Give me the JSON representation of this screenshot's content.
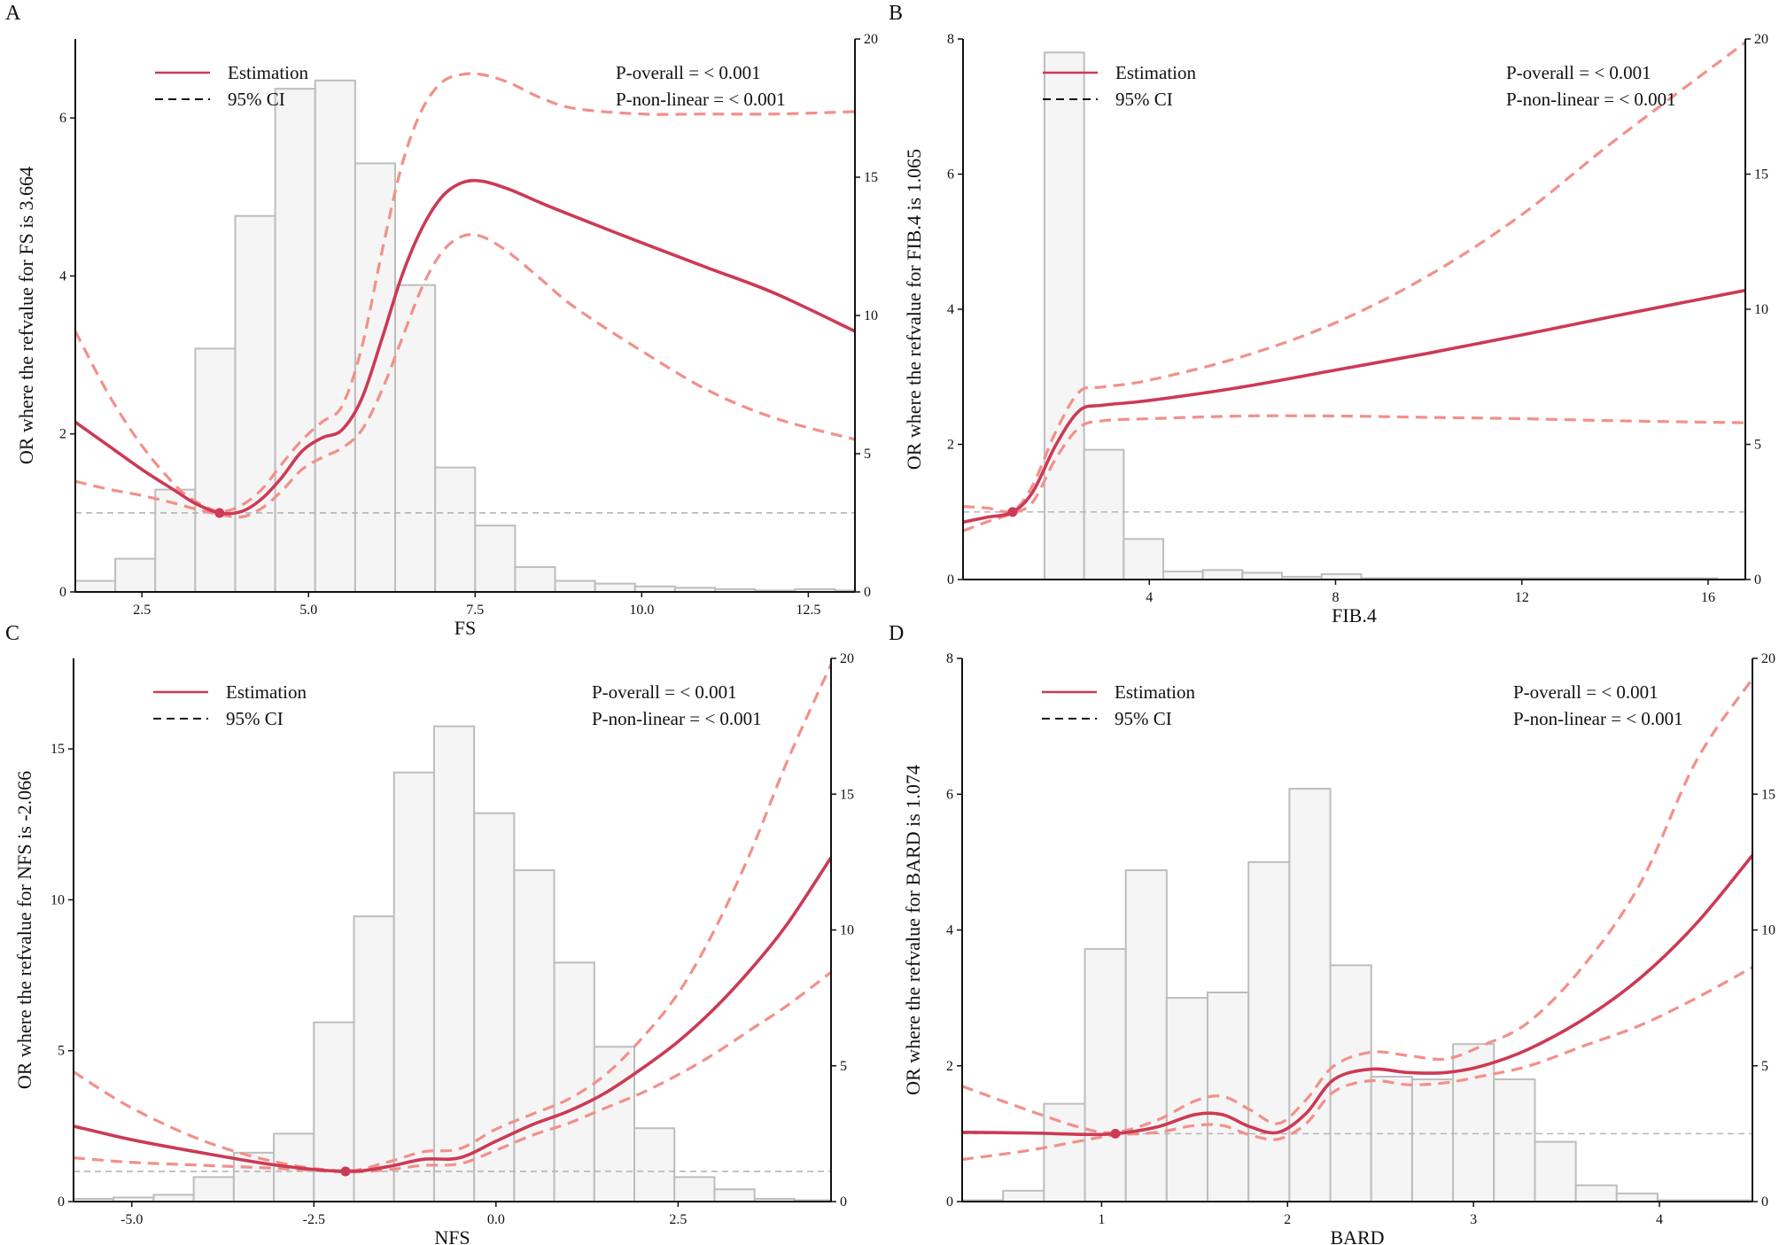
{
  "colors": {
    "estimation": "#cc3a55",
    "ci": "#f2908a",
    "bar_fill": "#f6f5f5",
    "bar_stroke": "#bdbdbd",
    "ref_line": "#b5b5b5",
    "axis": "#111111"
  },
  "chart_data": [
    {
      "panel": "A",
      "type": "line",
      "xlabel": "FS",
      "ylabel": "OR where the refvalue for FS is 3.664",
      "xlim": [
        1.5,
        13.2
      ],
      "ylim": [
        0,
        7
      ],
      "y2lim": [
        0,
        20
      ],
      "xticks": [
        2.5,
        5.0,
        7.5,
        10.0,
        12.5
      ],
      "xtick_labels": [
        "2.5",
        "5.0",
        "7.5",
        "10.0",
        "12.5"
      ],
      "yticks": [
        0,
        2,
        4,
        6
      ],
      "y2ticks": [
        0,
        5,
        10,
        15,
        20
      ],
      "ref_value": 1,
      "ref_point": [
        3.664,
        1
      ],
      "legend": {
        "estimation": "Estimation",
        "ci": "95% CI"
      },
      "p_overall": "P-overall = < 0.001",
      "p_nonlinear": "P-non-linear = < 0.001",
      "histogram": {
        "bin_edges": [
          1.5,
          2.1,
          2.7,
          3.3,
          3.9,
          4.5,
          5.1,
          5.7,
          6.3,
          6.9,
          7.5,
          8.1,
          8.7,
          9.3,
          9.9,
          10.5,
          11.1,
          11.7,
          12.3,
          12.9,
          13.2
        ],
        "counts": [
          0.4,
          1.2,
          3.7,
          8.8,
          13.6,
          18.2,
          18.5,
          15.5,
          11.1,
          4.5,
          2.4,
          0.9,
          0.4,
          0.3,
          0.2,
          0.15,
          0.1,
          0.05,
          0.1,
          0.05
        ]
      },
      "estimate": {
        "x": [
          1.5,
          2.0,
          2.5,
          3.0,
          3.3,
          3.664,
          4.0,
          4.3,
          4.6,
          4.9,
          5.2,
          5.5,
          5.8,
          6.1,
          6.4,
          6.7,
          7.0,
          7.3,
          7.6,
          8.0,
          8.5,
          9.0,
          10.0,
          11.0,
          12.0,
          13.2
        ],
        "y": [
          2.15,
          1.85,
          1.55,
          1.28,
          1.12,
          1.0,
          1.02,
          1.18,
          1.45,
          1.78,
          1.95,
          2.05,
          2.45,
          3.2,
          4.0,
          4.6,
          5.0,
          5.18,
          5.2,
          5.1,
          4.92,
          4.75,
          4.42,
          4.1,
          3.78,
          3.3
        ]
      },
      "ci_upper": {
        "x": [
          1.5,
          2.0,
          2.5,
          3.0,
          3.3,
          3.664,
          4.0,
          4.3,
          4.6,
          4.9,
          5.2,
          5.5,
          5.8,
          6.1,
          6.4,
          6.7,
          7.0,
          7.3,
          7.6,
          8.0,
          8.5,
          9.0,
          10.0,
          11.0,
          12.0,
          13.2
        ],
        "y": [
          3.3,
          2.5,
          1.85,
          1.35,
          1.15,
          1.02,
          1.1,
          1.3,
          1.62,
          1.92,
          2.15,
          2.35,
          3.1,
          4.3,
          5.4,
          6.1,
          6.45,
          6.55,
          6.55,
          6.45,
          6.25,
          6.12,
          6.05,
          6.05,
          6.05,
          6.08
        ]
      },
      "ci_lower": {
        "x": [
          1.5,
          2.0,
          2.5,
          3.0,
          3.3,
          3.664,
          4.0,
          4.3,
          4.6,
          4.9,
          5.2,
          5.5,
          5.8,
          6.1,
          6.4,
          6.7,
          7.0,
          7.3,
          7.6,
          8.0,
          8.5,
          9.0,
          10.0,
          11.0,
          12.0,
          13.2
        ],
        "y": [
          1.4,
          1.3,
          1.22,
          1.12,
          1.05,
          0.98,
          0.95,
          1.06,
          1.28,
          1.55,
          1.7,
          1.82,
          2.05,
          2.55,
          3.2,
          3.85,
          4.3,
          4.5,
          4.5,
          4.3,
          3.95,
          3.6,
          3.05,
          2.55,
          2.2,
          1.93
        ]
      }
    },
    {
      "panel": "B",
      "type": "line",
      "xlabel": "FIB.4",
      "ylabel": "OR where the refvalue for FIB.4 is 1.065",
      "xlim": [
        0,
        16.8
      ],
      "ylim": [
        0,
        8
      ],
      "y2lim": [
        0,
        20
      ],
      "xticks": [
        4,
        8,
        12,
        16
      ],
      "xtick_labels": [
        "4",
        "8",
        "12",
        "16"
      ],
      "yticks": [
        0,
        2,
        4,
        6,
        8
      ],
      "y2ticks": [
        0,
        5,
        10,
        15,
        20
      ],
      "ref_value": 1,
      "ref_point": [
        1.065,
        1
      ],
      "legend": {
        "estimation": "Estimation",
        "ci": "95% CI"
      },
      "p_overall": "P-overall = < 0.001",
      "p_nonlinear": "P-non-linear = < 0.001",
      "histogram": {
        "bin_edges": [
          1.75,
          2.6,
          3.45,
          4.3,
          5.15,
          6.0,
          6.85,
          7.7,
          8.55,
          9.4,
          10.25,
          11.1,
          11.95,
          12.8,
          13.65,
          14.5,
          15.35,
          16.2
        ],
        "counts": [
          19.5,
          4.8,
          1.5,
          0.3,
          0.35,
          0.25,
          0.1,
          0.2,
          0.05,
          0.05,
          0.05,
          0.05,
          0.05,
          0.05,
          0.05,
          0.05,
          0.05
        ]
      },
      "estimate": {
        "x": [
          0,
          0.5,
          1.065,
          1.5,
          2.0,
          2.5,
          3.0,
          4.0,
          6.0,
          8.0,
          10.0,
          12.0,
          14.0,
          16.8
        ],
        "y": [
          0.85,
          0.92,
          1.0,
          1.3,
          2.0,
          2.5,
          2.58,
          2.65,
          2.85,
          3.1,
          3.35,
          3.62,
          3.9,
          4.28
        ]
      },
      "ci_upper": {
        "x": [
          0,
          0.5,
          1.065,
          1.5,
          2.0,
          2.5,
          3.0,
          4.0,
          6.0,
          8.0,
          10.0,
          12.0,
          14.0,
          16.8
        ],
        "y": [
          1.08,
          1.06,
          1.02,
          1.4,
          2.2,
          2.78,
          2.85,
          2.95,
          3.3,
          3.8,
          4.5,
          5.4,
          6.5,
          7.95
        ]
      },
      "ci_lower": {
        "x": [
          0,
          0.5,
          1.065,
          1.5,
          2.0,
          2.5,
          3.0,
          4.0,
          6.0,
          8.0,
          10.0,
          12.0,
          14.0,
          16.8
        ],
        "y": [
          0.72,
          0.85,
          0.98,
          1.15,
          1.8,
          2.25,
          2.35,
          2.38,
          2.42,
          2.42,
          2.4,
          2.38,
          2.35,
          2.32
        ]
      }
    },
    {
      "panel": "C",
      "type": "line",
      "xlabel": "NFS",
      "ylabel": "OR where the refvalue for NFS is -2.066",
      "xlim": [
        -5.8,
        4.6
      ],
      "ylim": [
        0,
        18
      ],
      "y2lim": [
        0,
        20
      ],
      "xticks": [
        -5.0,
        -2.5,
        0.0,
        2.5
      ],
      "xtick_labels": [
        "-5.0",
        "-2.5",
        "0.0",
        "2.5"
      ],
      "yticks": [
        0,
        5,
        10,
        15
      ],
      "y2ticks": [
        0,
        5,
        10,
        15,
        20
      ],
      "ref_value": 1,
      "ref_point": [
        -2.066,
        1
      ],
      "legend": {
        "estimation": "Estimation",
        "ci": "95% CI"
      },
      "p_overall": "P-overall = < 0.001",
      "p_nonlinear": "P-non-linear = < 0.001",
      "histogram": {
        "bin_edges": [
          -5.8,
          -5.25,
          -4.7,
          -4.15,
          -3.6,
          -3.05,
          -2.5,
          -1.95,
          -1.4,
          -0.85,
          -0.3,
          0.25,
          0.8,
          1.35,
          1.9,
          2.45,
          3.0,
          3.55,
          4.1,
          4.6
        ],
        "counts": [
          0.1,
          0.15,
          0.25,
          0.9,
          1.8,
          2.5,
          6.6,
          10.5,
          15.8,
          17.5,
          14.3,
          12.2,
          8.8,
          5.7,
          2.7,
          0.9,
          0.45,
          0.1,
          0.05
        ]
      },
      "estimate": {
        "x": [
          -5.8,
          -5.0,
          -4.0,
          -3.0,
          -2.066,
          -1.5,
          -1.0,
          -0.5,
          0.0,
          0.5,
          1.0,
          1.5,
          2.0,
          2.5,
          3.0,
          3.5,
          4.0,
          4.6
        ],
        "y": [
          2.5,
          2.05,
          1.6,
          1.2,
          1.0,
          1.15,
          1.4,
          1.45,
          2.0,
          2.55,
          3.0,
          3.6,
          4.4,
          5.3,
          6.4,
          7.7,
          9.2,
          11.4
        ]
      },
      "ci_upper": {
        "x": [
          -5.8,
          -5.0,
          -4.0,
          -3.0,
          -2.066,
          -1.5,
          -1.0,
          -0.5,
          0.0,
          0.5,
          1.0,
          1.5,
          2.0,
          2.5,
          3.0,
          3.5,
          4.0,
          4.6
        ],
        "y": [
          4.3,
          3.1,
          2.0,
          1.3,
          1.02,
          1.3,
          1.65,
          1.75,
          2.4,
          2.9,
          3.4,
          4.2,
          5.4,
          6.9,
          9.0,
          11.6,
          14.6,
          17.8
        ]
      },
      "ci_lower": {
        "x": [
          -5.8,
          -5.0,
          -4.0,
          -3.0,
          -2.066,
          -1.5,
          -1.0,
          -0.5,
          0.0,
          0.5,
          1.0,
          1.5,
          2.0,
          2.5,
          3.0,
          3.5,
          4.0,
          4.6
        ],
        "y": [
          1.45,
          1.3,
          1.2,
          1.1,
          0.98,
          1.05,
          1.2,
          1.25,
          1.7,
          2.2,
          2.6,
          3.1,
          3.6,
          4.2,
          4.9,
          5.7,
          6.5,
          7.6
        ]
      }
    },
    {
      "panel": "D",
      "type": "line",
      "xlabel": "BARD",
      "ylabel": "OR where the refvalue for BARD is 1.074",
      "xlim": [
        0.25,
        4.5
      ],
      "ylim": [
        0,
        8
      ],
      "y2lim": [
        0,
        20
      ],
      "xticks": [
        1,
        2,
        3,
        4
      ],
      "xtick_labels": [
        "1",
        "2",
        "3",
        "4"
      ],
      "yticks": [
        0,
        2,
        4,
        6,
        8
      ],
      "y2ticks": [
        0,
        5,
        10,
        15,
        20
      ],
      "ref_value": 1,
      "ref_point": [
        1.074,
        1
      ],
      "legend": {
        "estimation": "Estimation",
        "ci": "95% CI"
      },
      "p_overall": "P-overall = < 0.001",
      "p_nonlinear": "P-non-linear = < 0.001",
      "histogram": {
        "bin_edges": [
          0.25,
          0.47,
          0.69,
          0.91,
          1.13,
          1.35,
          1.57,
          1.79,
          2.01,
          2.23,
          2.45,
          2.67,
          2.89,
          3.11,
          3.33,
          3.55,
          3.77,
          3.99,
          4.21,
          4.43,
          4.5
        ],
        "counts": [
          0.05,
          0.4,
          3.6,
          9.3,
          12.2,
          7.5,
          7.7,
          12.5,
          15.2,
          8.7,
          4.6,
          4.5,
          5.8,
          4.5,
          2.2,
          0.6,
          0.3,
          0.05,
          0.05,
          0.05
        ]
      },
      "estimate": {
        "x": [
          0.25,
          0.6,
          0.9,
          1.074,
          1.3,
          1.5,
          1.65,
          1.8,
          1.95,
          2.1,
          2.25,
          2.45,
          2.65,
          2.85,
          3.05,
          3.3,
          3.6,
          3.9,
          4.2,
          4.5
        ],
        "y": [
          1.02,
          1.01,
          0.99,
          1.0,
          1.1,
          1.28,
          1.28,
          1.1,
          1.02,
          1.3,
          1.8,
          1.95,
          1.9,
          1.9,
          2.0,
          2.25,
          2.7,
          3.3,
          4.1,
          5.1
        ]
      },
      "ci_upper": {
        "x": [
          0.25,
          0.6,
          0.9,
          1.074,
          1.3,
          1.5,
          1.65,
          1.8,
          1.95,
          2.1,
          2.25,
          2.45,
          2.65,
          2.85,
          3.05,
          3.3,
          3.6,
          3.9,
          4.2,
          4.5
        ],
        "y": [
          1.7,
          1.35,
          1.08,
          1.02,
          1.2,
          1.48,
          1.55,
          1.35,
          1.15,
          1.5,
          2.0,
          2.2,
          2.15,
          2.1,
          2.3,
          2.65,
          3.5,
          4.7,
          6.5,
          7.7
        ]
      },
      "ci_lower": {
        "x": [
          0.25,
          0.6,
          0.9,
          1.074,
          1.3,
          1.5,
          1.65,
          1.8,
          1.95,
          2.1,
          2.25,
          2.45,
          2.65,
          2.85,
          3.05,
          3.3,
          3.6,
          3.9,
          4.2,
          4.5
        ],
        "y": [
          0.62,
          0.75,
          0.9,
          0.98,
          1.02,
          1.12,
          1.12,
          0.98,
          0.92,
          1.15,
          1.62,
          1.78,
          1.72,
          1.75,
          1.85,
          2.0,
          2.3,
          2.6,
          3.0,
          3.45
        ]
      }
    }
  ]
}
